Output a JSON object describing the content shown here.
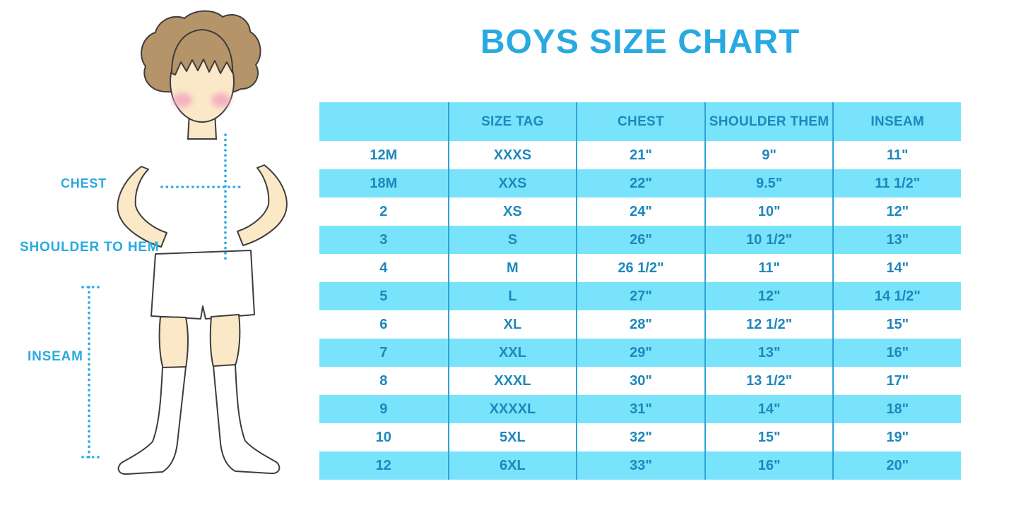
{
  "title": "BOYS SIZE CHART",
  "colors": {
    "accent": "#29A9E1",
    "band": "#79E3FB",
    "table_text": "#1E87BC",
    "divider": "#2DA3D6"
  },
  "figure": {
    "description": "boy-in-white-tshirt-shorts-and-knee-socks-with-dotted-measurement-lines",
    "labels": {
      "chest": "CHEST",
      "shoulder_to_hem": "SHOULDER TO HEM",
      "inseam": "INSEAM"
    }
  },
  "chart_data": {
    "type": "table",
    "title": "BOYS SIZE CHART",
    "columns": [
      "",
      "SIZE TAG",
      "CHEST",
      "SHOULDER THEM",
      "INSEAM"
    ],
    "rows": [
      [
        "12M",
        "XXXS",
        "21\"",
        "9\"",
        "11\""
      ],
      [
        "18M",
        "XXS",
        "22\"",
        "9.5\"",
        "11 1/2\""
      ],
      [
        "2",
        "XS",
        "24\"",
        "10\"",
        "12\""
      ],
      [
        "3",
        "S",
        "26\"",
        "10 1/2\"",
        "13\""
      ],
      [
        "4",
        "M",
        "26 1/2\"",
        "11\"",
        "14\""
      ],
      [
        "5",
        "L",
        "27\"",
        "12\"",
        "14 1/2\""
      ],
      [
        "6",
        "XL",
        "28\"",
        "12 1/2\"",
        "15\""
      ],
      [
        "7",
        "XXL",
        "29\"",
        "13\"",
        "16\""
      ],
      [
        "8",
        "XXXL",
        "30\"",
        "13 1/2\"",
        "17\""
      ],
      [
        "9",
        "XXXXL",
        "31\"",
        "14\"",
        "18\""
      ],
      [
        "10",
        "5XL",
        "32\"",
        "15\"",
        "19\""
      ],
      [
        "12",
        "6XL",
        "33\"",
        "16\"",
        "20\""
      ]
    ],
    "layout": {
      "header_fill": "cyan-band",
      "row_striping": "white/cyan alternating starting white",
      "column_dividers": true,
      "outer_border": false
    }
  }
}
